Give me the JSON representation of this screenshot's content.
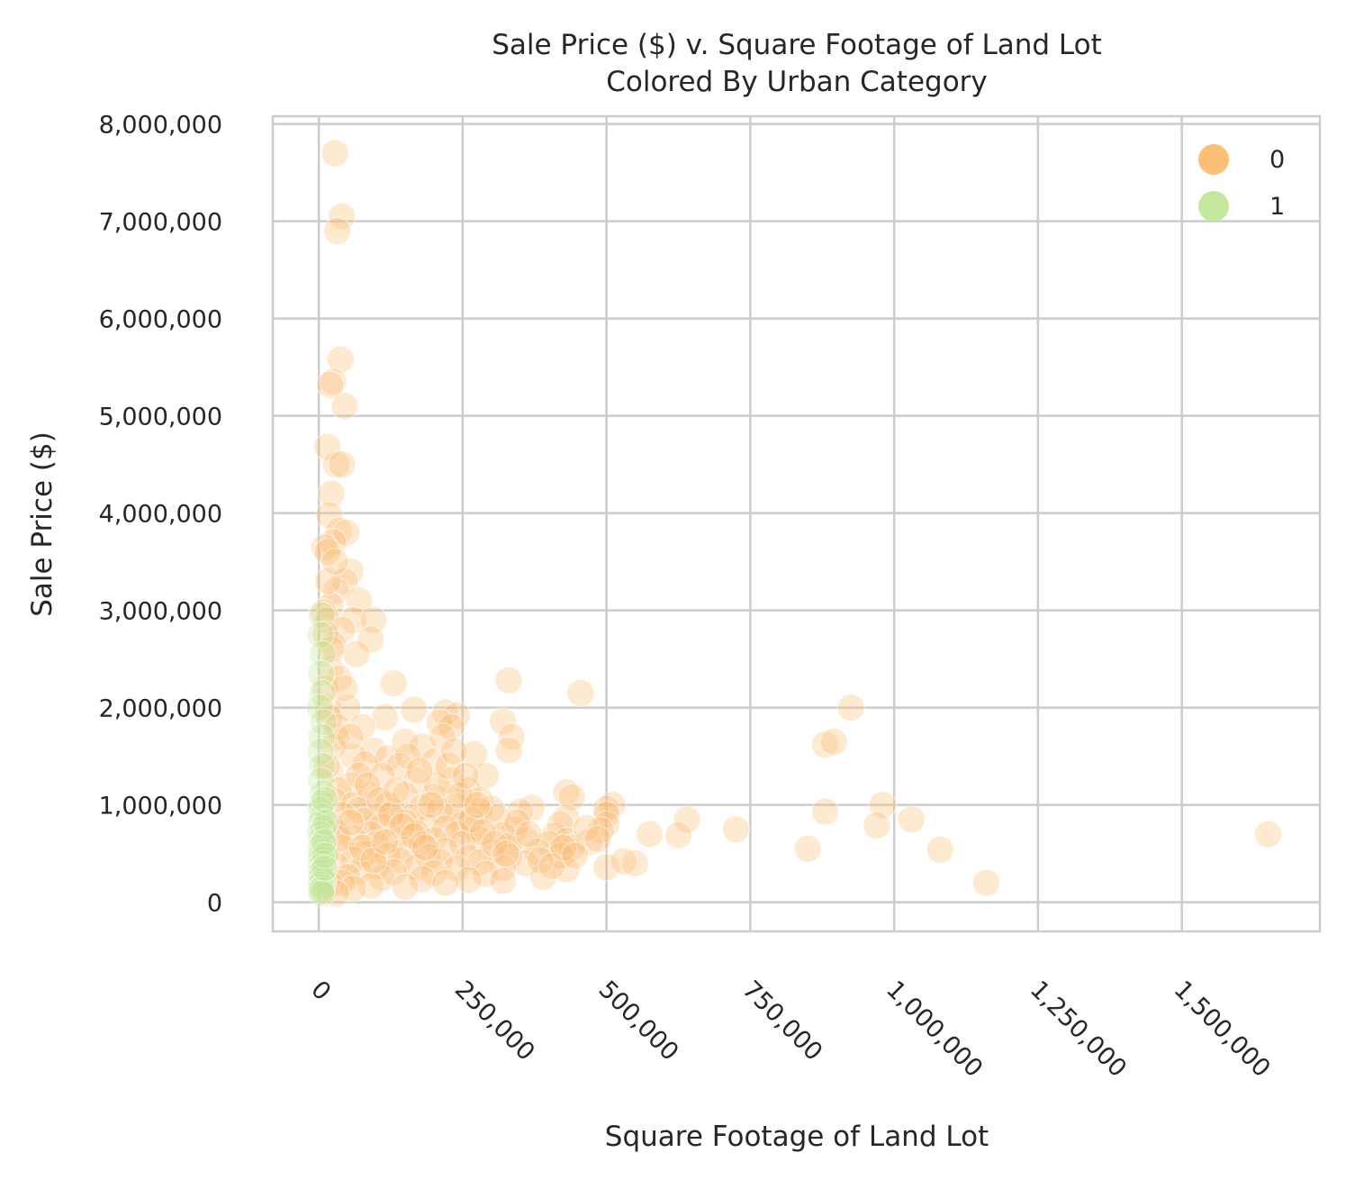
{
  "chart_data": {
    "type": "scatter",
    "title": [
      "Sale Price ($) v. Square Footage of Land Lot",
      "Colored By Urban Category"
    ],
    "xlabel": "Square Footage of Land Lot",
    "ylabel": "Sale Price ($)",
    "xlim": [
      -80000,
      1740000
    ],
    "ylim": [
      -300000,
      8080000
    ],
    "x_ticks": [
      0,
      250000,
      500000,
      750000,
      1000000,
      1250000,
      1500000
    ],
    "x_tick_labels": [
      "0",
      "250,000",
      "500,000",
      "750,000",
      "1,000,000",
      "1,250,000",
      "1,500,000"
    ],
    "y_ticks": [
      0,
      1000000,
      2000000,
      3000000,
      4000000,
      5000000,
      6000000,
      7000000,
      8000000
    ],
    "y_tick_labels": [
      "0",
      "1,000,000",
      "2,000,000",
      "3,000,000",
      "4,000,000",
      "5,000,000",
      "6,000,000",
      "7,000,000",
      "8,000,000"
    ],
    "grid": true,
    "legend_position": "top-right",
    "series": [
      {
        "name": "0",
        "color": "#fdbb6f",
        "points": [
          [
            28000,
            7700000
          ],
          [
            40000,
            7050000
          ],
          [
            32000,
            6900000
          ],
          [
            38000,
            5580000
          ],
          [
            25000,
            5350000
          ],
          [
            20000,
            5320000
          ],
          [
            45000,
            5100000
          ],
          [
            15000,
            4680000
          ],
          [
            30000,
            4500000
          ],
          [
            40000,
            4500000
          ],
          [
            22000,
            4200000
          ],
          [
            18000,
            3980000
          ],
          [
            35000,
            3820000
          ],
          [
            48000,
            3800000
          ],
          [
            25000,
            3700000
          ],
          [
            10000,
            3650000
          ],
          [
            15000,
            3600000
          ],
          [
            55000,
            3400000
          ],
          [
            45000,
            3300000
          ],
          [
            30000,
            3200000
          ],
          [
            70000,
            3100000
          ],
          [
            20000,
            3050000
          ],
          [
            8000,
            2980000
          ],
          [
            15000,
            2900000
          ],
          [
            60000,
            2900000
          ],
          [
            95000,
            2900000
          ],
          [
            40000,
            2800000
          ],
          [
            12000,
            2750000
          ],
          [
            90000,
            2700000
          ],
          [
            25000,
            2650000
          ],
          [
            65000,
            2550000
          ],
          [
            20000,
            2400000
          ],
          [
            35000,
            2300000
          ],
          [
            130000,
            2250000
          ],
          [
            330000,
            2280000
          ],
          [
            455000,
            2150000
          ],
          [
            15000,
            2000000
          ],
          [
            50000,
            2000000
          ],
          [
            165000,
            1980000
          ],
          [
            220000,
            1950000
          ],
          [
            240000,
            1920000
          ],
          [
            925000,
            2000000
          ],
          [
            115000,
            1900000
          ],
          [
            210000,
            1850000
          ],
          [
            320000,
            1860000
          ],
          [
            75000,
            1800000
          ],
          [
            230000,
            1800000
          ],
          [
            880000,
            1620000
          ],
          [
            895000,
            1650000
          ],
          [
            335000,
            1700000
          ],
          [
            30000,
            1700000
          ],
          [
            150000,
            1650000
          ],
          [
            180000,
            1600000
          ],
          [
            95000,
            1560000
          ],
          [
            270000,
            1520000
          ],
          [
            330000,
            1560000
          ],
          [
            60000,
            1500000
          ],
          [
            120000,
            1480000
          ],
          [
            200000,
            1450000
          ],
          [
            80000,
            1420000
          ],
          [
            140000,
            1400000
          ],
          [
            20000,
            1350000
          ],
          [
            290000,
            1300000
          ],
          [
            110000,
            1300000
          ],
          [
            170000,
            1250000
          ],
          [
            230000,
            1250000
          ],
          [
            55000,
            1200000
          ],
          [
            35000,
            1150000
          ],
          [
            260000,
            1150000
          ],
          [
            430000,
            1130000
          ],
          [
            90000,
            1100000
          ],
          [
            150000,
            1100000
          ],
          [
            200000,
            1080000
          ],
          [
            280000,
            1050000
          ],
          [
            440000,
            1080000
          ],
          [
            510000,
            1000000
          ],
          [
            25000,
            1050000
          ],
          [
            60000,
            1000000
          ],
          [
            120000,
            1000000
          ],
          [
            180000,
            980000
          ],
          [
            240000,
            990000
          ],
          [
            300000,
            960000
          ],
          [
            370000,
            970000
          ],
          [
            500000,
            960000
          ],
          [
            980000,
            1000000
          ],
          [
            70000,
            950000
          ],
          [
            130000,
            930000
          ],
          [
            210000,
            950000
          ],
          [
            280000,
            940000
          ],
          [
            350000,
            930000
          ],
          [
            880000,
            930000
          ],
          [
            40000,
            900000
          ],
          [
            100000,
            880000
          ],
          [
            160000,
            870000
          ],
          [
            230000,
            880000
          ],
          [
            310000,
            870000
          ],
          [
            500000,
            900000
          ],
          [
            430000,
            870000
          ],
          [
            1030000,
            850000
          ],
          [
            640000,
            850000
          ],
          [
            80000,
            840000
          ],
          [
            150000,
            820000
          ],
          [
            250000,
            800000
          ],
          [
            420000,
            800000
          ],
          [
            500000,
            800000
          ],
          [
            970000,
            790000
          ],
          [
            20000,
            800000
          ],
          [
            110000,
            780000
          ],
          [
            190000,
            770000
          ],
          [
            270000,
            760000
          ],
          [
            220000,
            760000
          ],
          [
            340000,
            750000
          ],
          [
            490000,
            740000
          ],
          [
            725000,
            750000
          ],
          [
            30000,
            720000
          ],
          [
            90000,
            700000
          ],
          [
            170000,
            710000
          ],
          [
            240000,
            700000
          ],
          [
            320000,
            690000
          ],
          [
            410000,
            690000
          ],
          [
            575000,
            700000
          ],
          [
            625000,
            690000
          ],
          [
            1650000,
            700000
          ],
          [
            60000,
            660000
          ],
          [
            130000,
            650000
          ],
          [
            200000,
            640000
          ],
          [
            280000,
            650000
          ],
          [
            360000,
            640000
          ],
          [
            430000,
            630000
          ],
          [
            470000,
            620000
          ],
          [
            100000,
            600000
          ],
          [
            180000,
            590000
          ],
          [
            250000,
            600000
          ],
          [
            330000,
            580000
          ],
          [
            400000,
            600000
          ],
          [
            440000,
            560000
          ],
          [
            40000,
            560000
          ],
          [
            150000,
            540000
          ],
          [
            220000,
            530000
          ],
          [
            300000,
            520000
          ],
          [
            380000,
            520000
          ],
          [
            850000,
            550000
          ],
          [
            1080000,
            540000
          ],
          [
            80000,
            500000
          ],
          [
            120000,
            480000
          ],
          [
            190000,
            470000
          ],
          [
            260000,
            460000
          ],
          [
            330000,
            470000
          ],
          [
            420000,
            480000
          ],
          [
            60000,
            440000
          ],
          [
            140000,
            430000
          ],
          [
            210000,
            420000
          ],
          [
            280000,
            410000
          ],
          [
            360000,
            400000
          ],
          [
            550000,
            400000
          ],
          [
            30000,
            380000
          ],
          [
            100000,
            370000
          ],
          [
            170000,
            360000
          ],
          [
            240000,
            350000
          ],
          [
            320000,
            350000
          ],
          [
            430000,
            340000
          ],
          [
            500000,
            360000
          ],
          [
            530000,
            420000
          ],
          [
            70000,
            320000
          ],
          [
            130000,
            310000
          ],
          [
            200000,
            300000
          ],
          [
            290000,
            290000
          ],
          [
            390000,
            260000
          ],
          [
            50000,
            260000
          ],
          [
            110000,
            250000
          ],
          [
            180000,
            240000
          ],
          [
            260000,
            230000
          ],
          [
            40000,
            200000
          ],
          [
            220000,
            200000
          ],
          [
            320000,
            220000
          ],
          [
            1160000,
            200000
          ],
          [
            20000,
            180000
          ],
          [
            90000,
            170000
          ],
          [
            150000,
            160000
          ],
          [
            60000,
            140000
          ],
          [
            10000,
            120000
          ],
          [
            30000,
            90000
          ],
          [
            25000,
            1600000
          ],
          [
            18000,
            1900000
          ],
          [
            12000,
            2200000
          ],
          [
            22000,
            2600000
          ],
          [
            16000,
            3300000
          ],
          [
            28000,
            3500000
          ],
          [
            14000,
            1400000
          ],
          [
            32000,
            1800000
          ],
          [
            45000,
            2200000
          ],
          [
            55000,
            1700000
          ],
          [
            70000,
            1300000
          ],
          [
            85000,
            1200000
          ],
          [
            105000,
            1050000
          ],
          [
            125000,
            900000
          ],
          [
            145000,
            780000
          ],
          [
            165000,
            680000
          ],
          [
            185000,
            560000
          ],
          [
            205000,
            1200000
          ],
          [
            225000,
            1400000
          ],
          [
            245000,
            1100000
          ],
          [
            265000,
            850000
          ],
          [
            285000,
            720000
          ],
          [
            305000,
            600000
          ],
          [
            325000,
            500000
          ],
          [
            345000,
            820000
          ],
          [
            365000,
            700000
          ],
          [
            385000,
            430000
          ],
          [
            405000,
            370000
          ],
          [
            425000,
            560000
          ],
          [
            445000,
            480000
          ],
          [
            465000,
            760000
          ],
          [
            485000,
            650000
          ],
          [
            15000,
            500000
          ],
          [
            35000,
            650000
          ],
          [
            55000,
            820000
          ],
          [
            75000,
            560000
          ],
          [
            95000,
            430000
          ],
          [
            115000,
            620000
          ],
          [
            135000,
            1150000
          ],
          [
            155000,
            1500000
          ],
          [
            175000,
            1350000
          ],
          [
            195000,
            1000000
          ],
          [
            215000,
            1700000
          ],
          [
            235000,
            1550000
          ],
          [
            255000,
            1300000
          ],
          [
            275000,
            1000000
          ]
        ]
      },
      {
        "name": "1",
        "color": "#c2e699",
        "points": [
          [
            5000,
            2950000
          ],
          [
            3000,
            2750000
          ],
          [
            7000,
            2550000
          ],
          [
            4000,
            2350000
          ],
          [
            6000,
            2150000
          ],
          [
            2000,
            2000000
          ],
          [
            8000,
            1850000
          ],
          [
            5000,
            1700000
          ],
          [
            3000,
            1550000
          ],
          [
            6000,
            1400000
          ],
          [
            4000,
            1250000
          ],
          [
            7000,
            1120000
          ],
          [
            5000,
            1020000
          ],
          [
            3000,
            950000
          ],
          [
            6000,
            880000
          ],
          [
            4000,
            820000
          ],
          [
            8000,
            760000
          ],
          [
            2000,
            700000
          ],
          [
            5000,
            650000
          ],
          [
            7000,
            600000
          ],
          [
            3000,
            560000
          ],
          [
            6000,
            520000
          ],
          [
            4000,
            480000
          ],
          [
            5000,
            440000
          ],
          [
            8000,
            400000
          ],
          [
            3000,
            360000
          ],
          [
            6000,
            330000
          ],
          [
            4000,
            300000
          ],
          [
            5000,
            260000
          ],
          [
            7000,
            220000
          ],
          [
            3000,
            180000
          ],
          [
            6000,
            150000
          ],
          [
            4000,
            120000
          ],
          [
            5000,
            90000
          ],
          [
            10000,
            1050000
          ],
          [
            12000,
            820000
          ],
          [
            9000,
            620000
          ],
          [
            11000,
            480000
          ],
          [
            10000,
            350000
          ]
        ]
      }
    ]
  }
}
